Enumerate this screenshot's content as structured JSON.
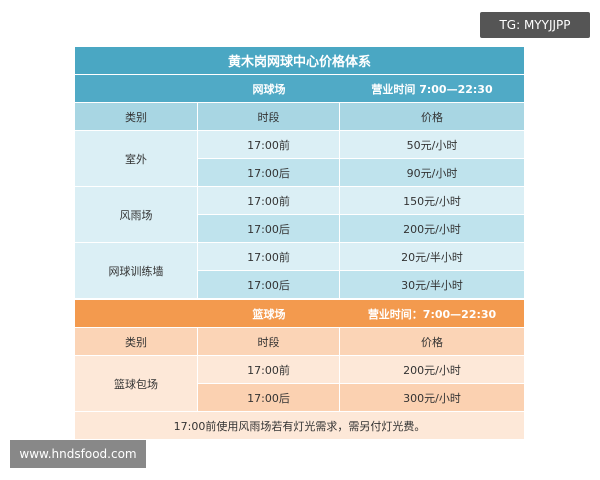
{
  "watermarks": {
    "top": "TG: MYYJJPP",
    "bottom": "www.hndsfood.com"
  },
  "title": "黄木岗网球中心价格体系",
  "colors": {
    "tennis": "#4aa7c3",
    "basketball": "#f39a4e"
  },
  "tennis": {
    "name": "网球场",
    "hours": "营业时间 7:00—22:30",
    "headers": [
      "类别",
      "时段",
      "价格"
    ],
    "groups": [
      {
        "category": "室外",
        "rows": [
          {
            "time": "17:00前",
            "price": "50元/小时"
          },
          {
            "time": "17:00后",
            "price": "90元/小时"
          }
        ]
      },
      {
        "category": "风雨场",
        "rows": [
          {
            "time": "17:00前",
            "price": "150元/小时"
          },
          {
            "time": "17:00后",
            "price": "200元/小时"
          }
        ]
      },
      {
        "category": "网球训练墙",
        "rows": [
          {
            "time": "17:00前",
            "price": "20元/半小时"
          },
          {
            "time": "17:00后",
            "price": "30元/半小时"
          }
        ]
      }
    ]
  },
  "basketball": {
    "name": "篮球场",
    "hours": "营业时间：7:00—22:30",
    "headers": [
      "类别",
      "时段",
      "价格"
    ],
    "groups": [
      {
        "category": "篮球包场",
        "rows": [
          {
            "time": "17:00前",
            "price": "200元/小时"
          },
          {
            "time": "17:00后",
            "price": "300元/小时"
          }
        ]
      }
    ]
  },
  "note": "17:00前使用风雨场若有灯光需求，需另付灯光费。"
}
